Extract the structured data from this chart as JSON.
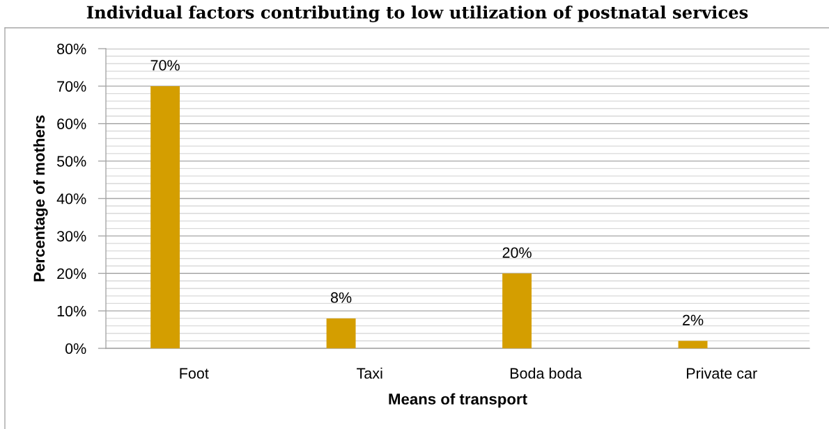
{
  "chart_data": {
    "type": "bar",
    "title": "Individual factors contributing to low utilization of postnatal services",
    "xlabel": "Means of transport",
    "ylabel": "Percentage of mothers",
    "categories": [
      "Foot",
      "Taxi",
      "Boda boda",
      "Private car"
    ],
    "values": [
      70,
      8,
      20,
      2
    ],
    "color": "#d49e00",
    "value_labels": [
      "70%",
      "8%",
      "20%",
      "2%"
    ],
    "ylim": [
      0,
      80
    ],
    "yticks": [
      {
        "value": 0,
        "label": "0%"
      },
      {
        "value": 2,
        "label": null
      },
      {
        "value": 4,
        "label": null
      },
      {
        "value": 6,
        "label": null
      },
      {
        "value": 8,
        "label": null
      },
      {
        "value": 10,
        "label": "10%"
      },
      {
        "value": 12,
        "label": null
      },
      {
        "value": 14,
        "label": null
      },
      {
        "value": 16,
        "label": null
      },
      {
        "value": 18,
        "label": null
      },
      {
        "value": 20,
        "label": "20%"
      },
      {
        "value": 22,
        "label": null
      },
      {
        "value": 24,
        "label": null
      },
      {
        "value": 26,
        "label": null
      },
      {
        "value": 28,
        "label": null
      },
      {
        "value": 30,
        "label": "30%"
      },
      {
        "value": 32,
        "label": null
      },
      {
        "value": 34,
        "label": null
      },
      {
        "value": 36,
        "label": null
      },
      {
        "value": 38,
        "label": null
      },
      {
        "value": 40,
        "label": "40%"
      },
      {
        "value": 42,
        "label": null
      },
      {
        "value": 44,
        "label": null
      },
      {
        "value": 46,
        "label": null
      },
      {
        "value": 48,
        "label": null
      },
      {
        "value": 50,
        "label": "50%"
      },
      {
        "value": 52,
        "label": null
      },
      {
        "value": 54,
        "label": null
      },
      {
        "value": 56,
        "label": null
      },
      {
        "value": 58,
        "label": null
      },
      {
        "value": 60,
        "label": "60%"
      },
      {
        "value": 62,
        "label": null
      },
      {
        "value": 64,
        "label": null
      },
      {
        "value": 66,
        "label": null
      },
      {
        "value": 68,
        "label": null
      },
      {
        "value": 70,
        "label": "70%"
      },
      {
        "value": 72,
        "label": null
      },
      {
        "value": 74,
        "label": null
      },
      {
        "value": 76,
        "label": null
      },
      {
        "value": 78,
        "label": null
      },
      {
        "value": 80,
        "label": "80%"
      }
    ],
    "grid": "y"
  }
}
